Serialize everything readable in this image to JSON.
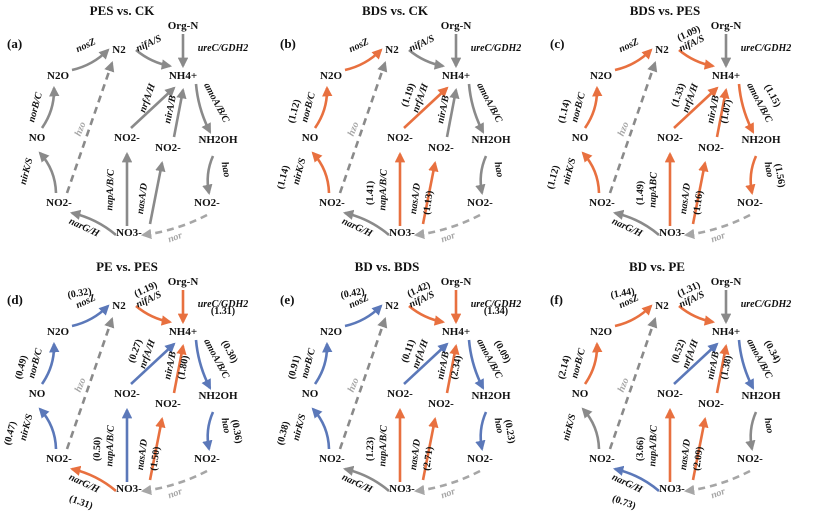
{
  "colors": {
    "up": "#e8703f",
    "down": "#5b78b9",
    "neutral": "#8a8a8a",
    "faded": "#a6a6a6"
  },
  "nodes": {
    "orgn": "Org-N",
    "nh4": "NH4+",
    "n2": "N2",
    "n2o": "N2O",
    "no": "NO",
    "no2": "NO2-",
    "no3": "NO3-",
    "nh2oh": "NH2OH"
  },
  "genes": {
    "ure": "ureC/GDH2",
    "nif": "nifA/S",
    "nos": "nosZ",
    "nor_b": "norB/C",
    "nir_ks": "nirK/S",
    "nar": "narG/H",
    "nor": "nor",
    "hao": "hao",
    "nrf": "nrfA/H",
    "nap": "napA/B/C",
    "nap_c": "napABC",
    "nas": "nasA/D",
    "nir_ab": "nirA/B",
    "amo": "amoA/B/C",
    "hzo": "hzo"
  },
  "panels": [
    {
      "label": "(a)",
      "title": "PES vs. CK",
      "status": {},
      "values": {}
    },
    {
      "label": "(b)",
      "title": "BDS vs. CK",
      "status": {
        "nos": "up",
        "nor_b": "up",
        "nir_ks": "up",
        "nap": "up",
        "nas": "up",
        "nrf": "up"
      },
      "values": {
        "nor_b": "(1.12)",
        "nir_ks": "(1.14)",
        "nap": "(1.41)",
        "nas": "(1.13)",
        "nrf": "(1.19)"
      }
    },
    {
      "label": "(c)",
      "title": "BDS vs. PES",
      "status": {
        "nos": "up",
        "nif": "up",
        "nor_b": "up",
        "nir_ks": "up",
        "nap": "up",
        "nas": "up",
        "nrf": "up",
        "nir_ab": "up",
        "amo": "up",
        "hao": "up"
      },
      "values": {
        "nif": "(1.09)",
        "nor_b": "(1.14)",
        "nir_ks": "(1.12)",
        "nap": "(1.49)",
        "nas": "(1.16)",
        "nrf": "(1.33)",
        "nir_ab": "(1.07)",
        "amo": "(1.15)",
        "hao": "(1.56)"
      }
    },
    {
      "label": "(d)",
      "title": "PE vs. PES",
      "status": {
        "nos": "down",
        "nif": "up",
        "ure": "up",
        "nor_b": "down",
        "nir_ks": "down",
        "nar": "up",
        "nap": "down",
        "nas": "up",
        "nrf": "down",
        "nir_ab": "up",
        "amo": "down",
        "hao": "down"
      },
      "values": {
        "nos": "(0.32)",
        "nif": "(1.19)",
        "ure": "(1.31)",
        "nor_b": "(0.49)",
        "nir_ks": "(0.47)",
        "nar": "(1.31)",
        "nap": "(0.50)",
        "nas": "(1.50)",
        "nrf": "(0.27)",
        "nir_ab": "(1.80)",
        "amo": "(0.30)",
        "hao": "(0.36)"
      }
    },
    {
      "label": "(e)",
      "title": "BD vs. BDS",
      "status": {
        "nos": "down",
        "nif": "up",
        "ure": "up",
        "nor_b": "down",
        "nir_ks": "down",
        "nap": "up",
        "nas": "up",
        "nrf": "down",
        "nir_ab": "up",
        "amo": "down",
        "hao": "down"
      },
      "values": {
        "nos": "(0.42)",
        "nif": "(1.42)",
        "ure": "(1.34)",
        "nor_b": "(0.91)",
        "nir_ks": "(0.38)",
        "nap": "(1.23)",
        "nas": "(2.71)",
        "nrf": "(0.11)",
        "nir_ab": "(2.34)",
        "amo": "(0.09)",
        "hao": "(0.23)"
      }
    },
    {
      "label": "(f)",
      "title": "BD vs. PE",
      "status": {
        "nos": "up",
        "nif": "up",
        "nor_b": "up",
        "nar": "down",
        "nap": "up",
        "nas": "up",
        "nrf": "down",
        "nir_ab": "up",
        "amo": "down"
      },
      "values": {
        "nos": "(1.44)",
        "nif": "(1.31)",
        "nor_b": "(2.14)",
        "nar": "(0.73)",
        "nap": "(3.66)",
        "nas": "(2.09)",
        "nrf": "(0.52)",
        "nir_ab": "(1.38)",
        "amo": "(0.34)"
      }
    }
  ]
}
